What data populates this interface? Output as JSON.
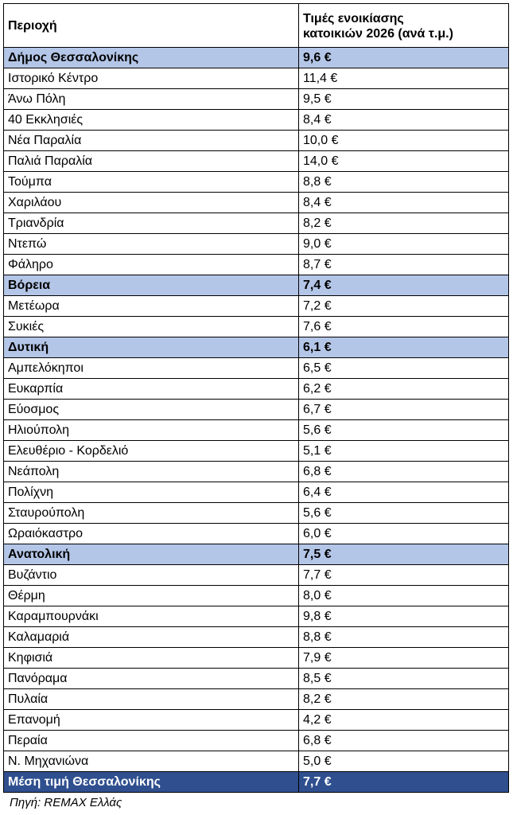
{
  "table": {
    "header": {
      "area": "Περιοχή",
      "price_line1": "Τιμές ενοικίασης",
      "price_line2": "κατοικιών 2026 (ανά τ.μ.)"
    },
    "rows": [
      {
        "name": "Δήμος Θεσσαλονίκης",
        "price": "9,6 €",
        "kind": "region"
      },
      {
        "name": "Ιστορικό Κέντρο",
        "price": "11,4 €",
        "kind": "area"
      },
      {
        "name": "Άνω Πόλη",
        "price": "9,5 €",
        "kind": "area"
      },
      {
        "name": "40 Εκκλησιές",
        "price": "8,4 €",
        "kind": "area"
      },
      {
        "name": "Νέα Παραλία",
        "price": "10,0 €",
        "kind": "area"
      },
      {
        "name": "Παλιά Παραλία",
        "price": "14,0 €",
        "kind": "area"
      },
      {
        "name": "Τούμπα",
        "price": "8,8 €",
        "kind": "area"
      },
      {
        "name": "Χαριλάου",
        "price": "8,4 €",
        "kind": "area"
      },
      {
        "name": "Τριανδρία",
        "price": "8,2 €",
        "kind": "area"
      },
      {
        "name": "Ντεπώ",
        "price": "9,0 €",
        "kind": "area"
      },
      {
        "name": "Φάληρο",
        "price": "8,7 €",
        "kind": "area"
      },
      {
        "name": "Βόρεια",
        "price": "7,4 €",
        "kind": "region"
      },
      {
        "name": "Μετέωρα",
        "price": "7,2 €",
        "kind": "area"
      },
      {
        "name": "Συκιές",
        "price": "7,6 €",
        "kind": "area"
      },
      {
        "name": "Δυτική",
        "price": "6,1 €",
        "kind": "region"
      },
      {
        "name": "Αμπελόκηποι",
        "price": "6,5 €",
        "kind": "area"
      },
      {
        "name": "Ευκαρπία",
        "price": "6,2 €",
        "kind": "area"
      },
      {
        "name": "Εύοσμος",
        "price": "6,7 €",
        "kind": "area"
      },
      {
        "name": "Ηλιούπολη",
        "price": "5,6 €",
        "kind": "area"
      },
      {
        "name": "Ελευθέριο - Κορδελιό",
        "price": "5,1 €",
        "kind": "area"
      },
      {
        "name": "Νεάπολη",
        "price": "6,8 €",
        "kind": "area"
      },
      {
        "name": "Πολίχνη",
        "price": "6,4 €",
        "kind": "area"
      },
      {
        "name": "Σταυρούπολη",
        "price": "5,6 €",
        "kind": "area"
      },
      {
        "name": "Ωραιόκαστρο",
        "price": "6,0 €",
        "kind": "area"
      },
      {
        "name": "Ανατολική",
        "price": "7,5 €",
        "kind": "region"
      },
      {
        "name": "Βυζάντιο",
        "price": "7,7 €",
        "kind": "area"
      },
      {
        "name": "Θέρμη",
        "price": "8,0 €",
        "kind": "area"
      },
      {
        "name": "Καραμπουρνάκι",
        "price": "9,8 €",
        "kind": "area"
      },
      {
        "name": "Καλαμαριά",
        "price": "8,8 €",
        "kind": "area"
      },
      {
        "name": "Κηφισιά",
        "price": "7,9 €",
        "kind": "area"
      },
      {
        "name": "Πανόραμα",
        "price": "8,5 €",
        "kind": "area"
      },
      {
        "name": "Πυλαία",
        "price": "8,2 €",
        "kind": "area"
      },
      {
        "name": "Επανομή",
        "price": "4,2 €",
        "kind": "area"
      },
      {
        "name": "Περαία",
        "price": "6,8 €",
        "kind": "area"
      },
      {
        "name": "Ν. Μηχανιώνα",
        "price": "5,0 €",
        "kind": "area"
      },
      {
        "name": "Μέση τιμή Θεσσαλονίκης",
        "price": "7,7 €",
        "kind": "total"
      }
    ]
  },
  "source": "Πηγή: REMAX Ελλάς"
}
